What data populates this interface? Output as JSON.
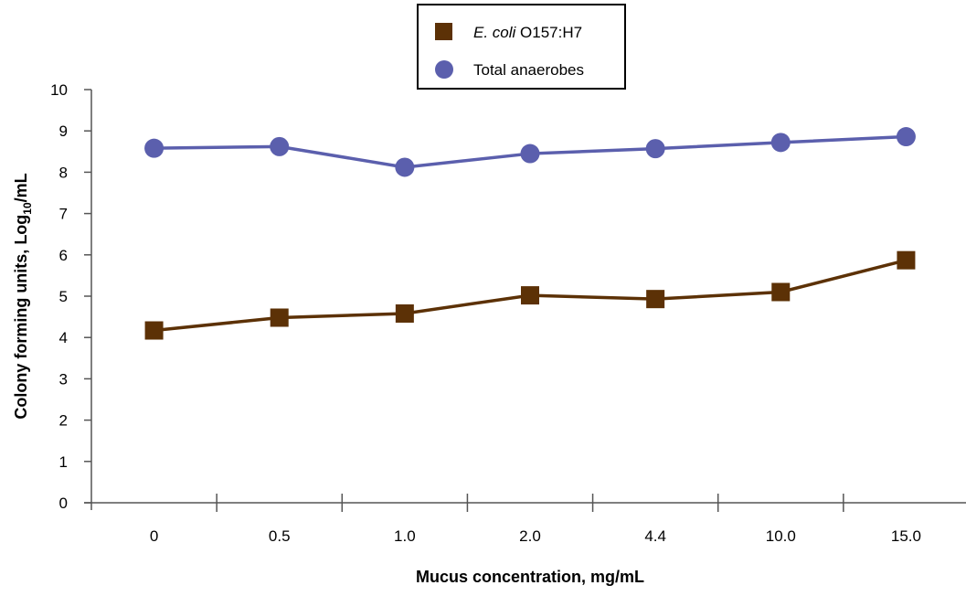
{
  "chart_data": {
    "type": "line",
    "title": "",
    "xlabel": "Mucus concentration, mg/mL",
    "ylabel_main": "Colony forming units, Log",
    "ylabel_sub": "10",
    "ylabel_end": "/mL",
    "categories": [
      "0",
      "0.5",
      "1.0",
      "2.0",
      "4.4",
      "10.0",
      "15.0"
    ],
    "ylim": [
      0,
      10
    ],
    "yticks": [
      "0",
      "1",
      "2",
      "3",
      "4",
      "5",
      "6",
      "7",
      "8",
      "9",
      "10"
    ],
    "grid": false,
    "legend_position": "top-center",
    "series": [
      {
        "name_italic": "E. coli",
        "name_rest": " O157:H7",
        "marker": "square",
        "color": "#5c3106",
        "values": [
          4.17,
          4.48,
          4.58,
          5.02,
          4.93,
          5.1,
          5.87
        ]
      },
      {
        "name": "Total anaerobes",
        "marker": "circle",
        "color": "#5b5fad",
        "values": [
          8.58,
          8.62,
          8.12,
          8.45,
          8.57,
          8.72,
          8.86
        ]
      }
    ]
  }
}
